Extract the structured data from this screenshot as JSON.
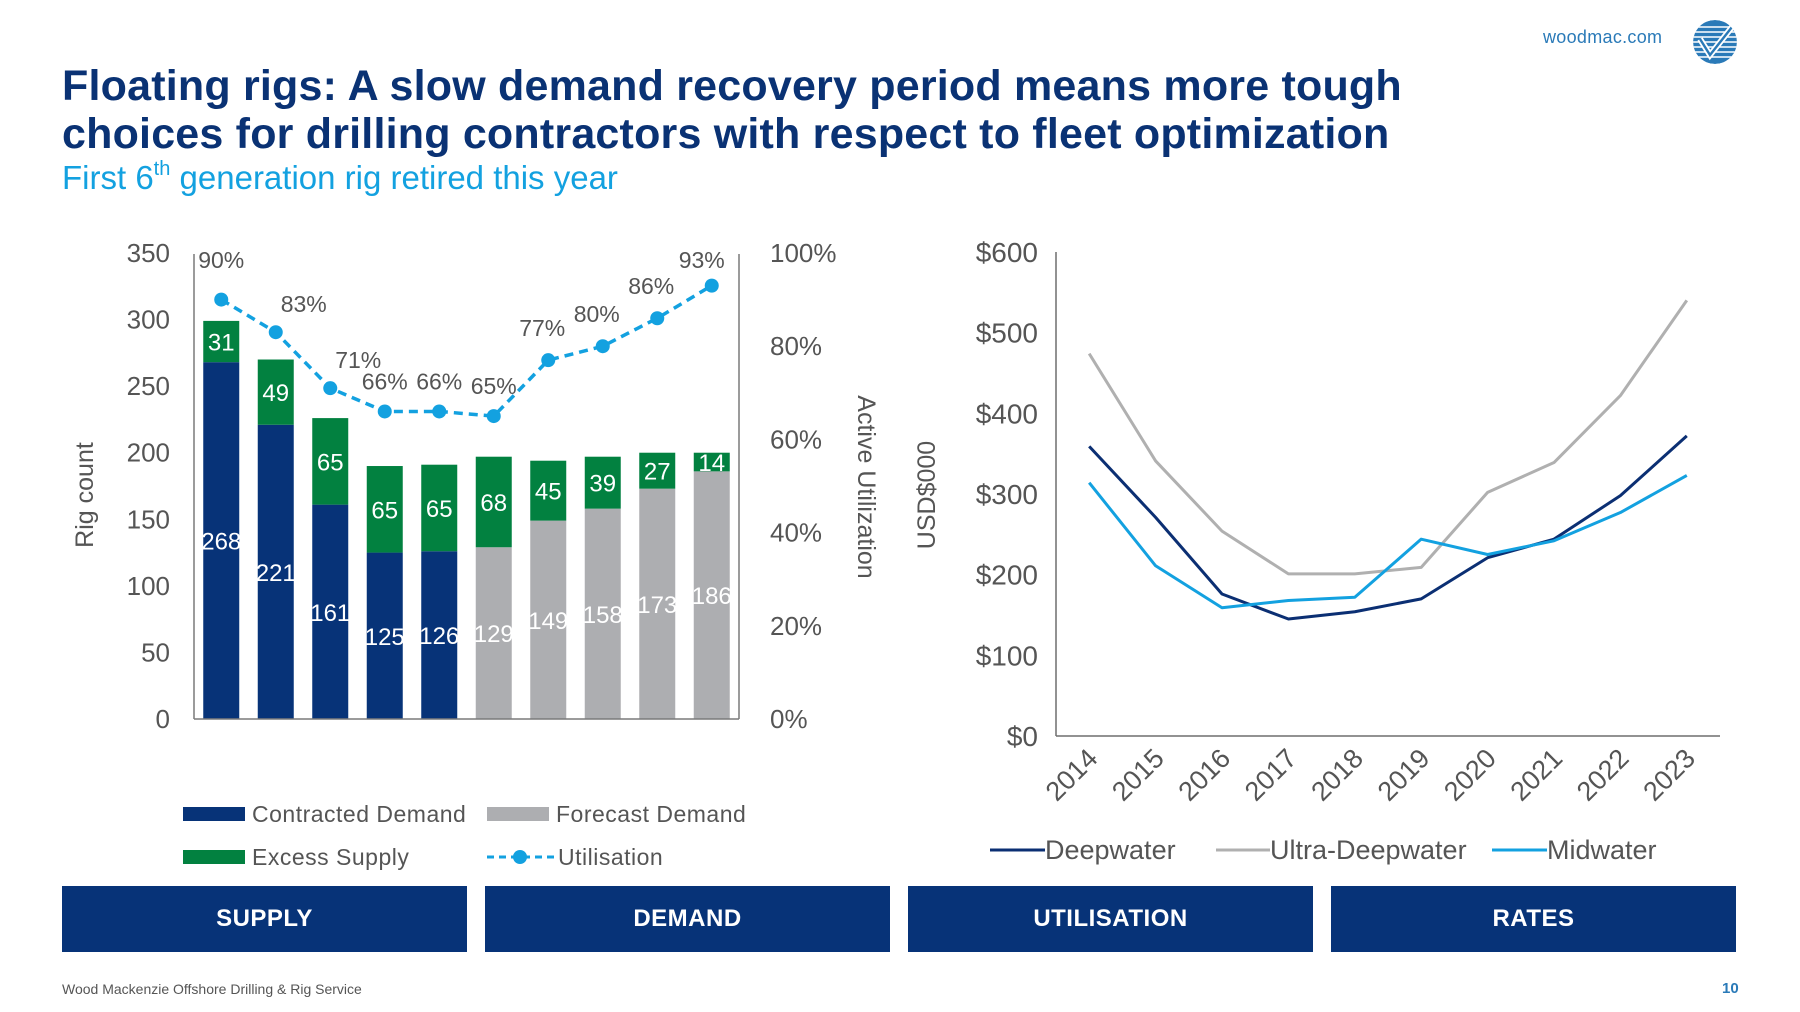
{
  "header": {
    "site": "woodmac.com",
    "logo_icon": "woodmac-checkmark-globe-icon",
    "title": "Floating rigs: A slow demand recovery period means more tough choices for drilling contractors with respect to fleet optimization",
    "subtitle_pre": "First 6",
    "subtitle_sup": "th",
    "subtitle_post": " generation rig retired this year"
  },
  "colors": {
    "navy": "#073378",
    "green": "#028140",
    "grey": "#adaeb1",
    "light_blue": "#13a1e0",
    "ultra_grey": "#b0b0b0",
    "deep_navy": "#0b2f73"
  },
  "chart_data": [
    {
      "type": "bar",
      "stacked": true,
      "title": "",
      "xlabel": "",
      "ylabel": "Rig count",
      "y2label": "Active Utilization",
      "ylim": [
        0,
        350
      ],
      "yticks": [
        "0",
        "50",
        "100",
        "150",
        "200",
        "250",
        "300",
        "350"
      ],
      "y2lim": [
        0,
        100
      ],
      "y2ticks": [
        "0%",
        "20%",
        "40%",
        "60%",
        "80%",
        "100%"
      ],
      "categories": [
        "",
        "",
        "",
        "",
        "",
        "",
        "",
        "",
        "",
        ""
      ],
      "demand_values": [
        268,
        221,
        161,
        125,
        126,
        129,
        149,
        158,
        173,
        186
      ],
      "demand_type": [
        "contracted",
        "contracted",
        "contracted",
        "contracted",
        "contracted",
        "forecast",
        "forecast",
        "forecast",
        "forecast",
        "forecast"
      ],
      "series": [
        {
          "name": "Contracted Demand",
          "values": [
            268,
            221,
            161,
            125,
            126,
            null,
            null,
            null,
            null,
            null
          ]
        },
        {
          "name": "Forecast Demand",
          "values": [
            null,
            null,
            null,
            null,
            null,
            129,
            149,
            158,
            173,
            186
          ]
        },
        {
          "name": "Excess Supply",
          "values": [
            31,
            49,
            65,
            65,
            65,
            68,
            45,
            39,
            27,
            14
          ]
        },
        {
          "name": "Utilisation",
          "axis": "right",
          "values": [
            90,
            83,
            71,
            66,
            66,
            65,
            77,
            80,
            86,
            93
          ],
          "labels": [
            "90%",
            "83%",
            "71%",
            "66%",
            "66%",
            "65%",
            "77%",
            "80%",
            "86%",
            "93%"
          ]
        }
      ],
      "legend": [
        "Contracted Demand",
        "Forecast Demand",
        "Excess Supply",
        "Utilisation"
      ],
      "legend_position": "bottom",
      "grid": false
    },
    {
      "type": "line",
      "title": "",
      "xlabel": "",
      "ylabel": "USD$000",
      "ylim": [
        0,
        600
      ],
      "yticks": [
        "$0",
        "$100",
        "$200",
        "$300",
        "$400",
        "$500",
        "$600"
      ],
      "x": [
        "2014",
        "2015",
        "2016",
        "2017",
        "2018",
        "2019",
        "2020",
        "2021",
        "2022",
        "2023"
      ],
      "series": [
        {
          "name": "Deepwater",
          "values": [
            359,
            271,
            176,
            145,
            154,
            170,
            221,
            244,
            298,
            372
          ]
        },
        {
          "name": "Ultra-Deepwater",
          "values": [
            474,
            341,
            254,
            201,
            201,
            209,
            302,
            339,
            422,
            540
          ]
        },
        {
          "name": "Midwater",
          "values": [
            314,
            211,
            159,
            168,
            172,
            244,
            225,
            242,
            277,
            323
          ]
        }
      ],
      "legend_position": "bottom",
      "grid": false
    }
  ],
  "nav": {
    "buttons": [
      "SUPPLY",
      "DEMAND",
      "UTILISATION",
      "RATES"
    ]
  },
  "footer": {
    "source": "Wood Mackenzie Offshore Drilling & Rig Service",
    "page_number": "10"
  }
}
